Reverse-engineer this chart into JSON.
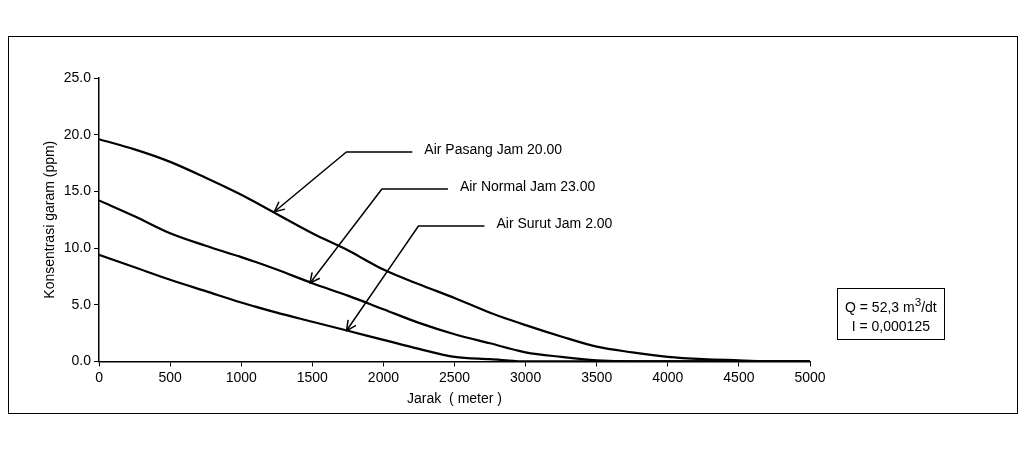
{
  "chart_data": {
    "type": "line",
    "xlabel": "Jarak  ( meter )",
    "ylabel": "Konsentrasi garam (ppm)",
    "x": [
      0,
      250,
      500,
      750,
      1000,
      1250,
      1500,
      1750,
      2000,
      2250,
      2500,
      2750,
      3000,
      3250,
      3500,
      3750,
      4000,
      4250,
      4500,
      4750,
      5000
    ],
    "series": [
      {
        "color": "#000000",
        "values": [
          19.6,
          18.7,
          17.6,
          16.2,
          14.7,
          13.0,
          11.3,
          9.8,
          8.1,
          6.8,
          5.6,
          4.3,
          3.2,
          2.2,
          1.3,
          0.8,
          0.4,
          0.2,
          0.1,
          0,
          0
        ]
      },
      {
        "color": "#000000",
        "values": [
          14.2,
          12.8,
          11.3,
          10.2,
          9.2,
          8.1,
          6.9,
          5.8,
          4.6,
          3.4,
          2.4,
          1.6,
          0.8,
          0.4,
          0.1,
          0,
          0,
          0,
          0,
          0,
          0
        ]
      },
      {
        "color": "#000000",
        "values": [
          9.4,
          8.3,
          7.2,
          6.2,
          5.2,
          4.3,
          3.5,
          2.7,
          1.9,
          1.1,
          0.4,
          0.2,
          0,
          0,
          0,
          0,
          0,
          0,
          0,
          0,
          0
        ]
      }
    ],
    "xlim": [
      0,
      5000
    ],
    "xticks": [
      0,
      500,
      1000,
      1500,
      2000,
      2500,
      3000,
      3500,
      4000,
      4500,
      5000
    ],
    "ylim": [
      0,
      25
    ],
    "yticks": [
      {
        "value": 0,
        "label": "0.0"
      },
      {
        "value": 5,
        "label": "5.0"
      },
      {
        "value": 10,
        "label": "10.0"
      },
      {
        "value": 15,
        "label": "15.0"
      },
      {
        "value": 20,
        "label": "20.0"
      },
      {
        "value": 25,
        "label": "25.0"
      }
    ],
    "grid": false,
    "legend": false,
    "marker": "none",
    "line_style": "solid",
    "annotations": [
      {
        "text": "Air Pasang Jam 20.00",
        "x": 1233,
        "y": 13.2
      },
      {
        "text": "Air Normal Jam 23.00",
        "x": 1483,
        "y": 6.9
      },
      {
        "text": "Air Surut Jam 2.00",
        "x": 1740,
        "y": 2.7
      },
      "Q = 52,3 m$^{3}$/dt",
      "I = 0,000125"
    ]
  }
}
